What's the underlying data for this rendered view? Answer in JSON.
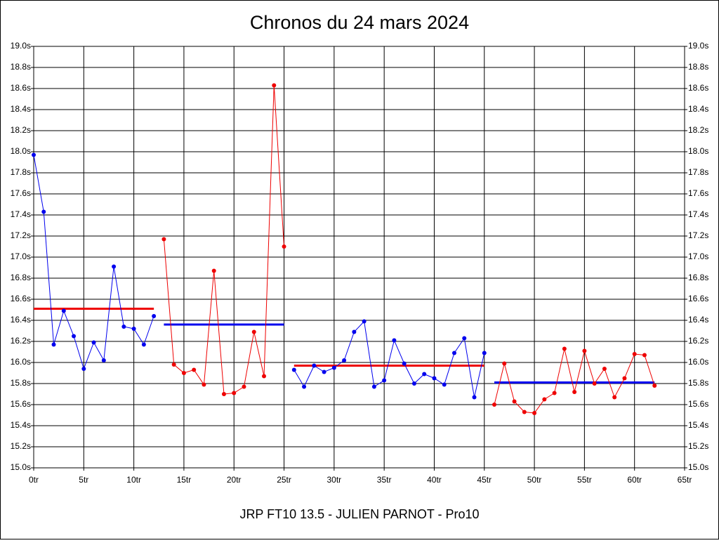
{
  "chart_data": {
    "type": "line",
    "title": "Chronos du 24 mars 2024",
    "footer": "JRP FT10 13.5 - JULIEN PARNOT - Pro10",
    "xlim": [
      0,
      65
    ],
    "ylim": [
      15.0,
      19.0
    ],
    "grid": true,
    "xticks": [
      {
        "value": 0,
        "label": "0tr"
      },
      {
        "value": 5,
        "label": "5tr"
      },
      {
        "value": 10,
        "label": "10tr"
      },
      {
        "value": 15,
        "label": "15tr"
      },
      {
        "value": 20,
        "label": "20tr"
      },
      {
        "value": 25,
        "label": "25tr"
      },
      {
        "value": 30,
        "label": "30tr"
      },
      {
        "value": 35,
        "label": "35tr"
      },
      {
        "value": 40,
        "label": "40tr"
      },
      {
        "value": 45,
        "label": "45tr"
      },
      {
        "value": 50,
        "label": "50tr"
      },
      {
        "value": 55,
        "label": "55tr"
      },
      {
        "value": 60,
        "label": "60tr"
      },
      {
        "value": 65,
        "label": "65tr"
      }
    ],
    "yticks": [
      {
        "value": 15.0,
        "label": "15.0s"
      },
      {
        "value": 15.2,
        "label": "15.2s"
      },
      {
        "value": 15.4,
        "label": "15.4s"
      },
      {
        "value": 15.6,
        "label": "15.6s"
      },
      {
        "value": 15.8,
        "label": "15.8s"
      },
      {
        "value": 16.0,
        "label": "16.0s"
      },
      {
        "value": 16.2,
        "label": "16.2s"
      },
      {
        "value": 16.4,
        "label": "16.4s"
      },
      {
        "value": 16.6,
        "label": "16.6s"
      },
      {
        "value": 16.8,
        "label": "16.8s"
      },
      {
        "value": 17.0,
        "label": "17.0s"
      },
      {
        "value": 17.2,
        "label": "17.2s"
      },
      {
        "value": 17.4,
        "label": "17.4s"
      },
      {
        "value": 17.6,
        "label": "17.6s"
      },
      {
        "value": 17.8,
        "label": "17.8s"
      },
      {
        "value": 18.0,
        "label": "18.0s"
      },
      {
        "value": 18.2,
        "label": "18.2s"
      },
      {
        "value": 18.4,
        "label": "18.4s"
      },
      {
        "value": 18.6,
        "label": "18.6s"
      },
      {
        "value": 18.8,
        "label": "18.8s"
      },
      {
        "value": 19.0,
        "label": "19.0s"
      }
    ],
    "series": [
      {
        "color": "#0000ee",
        "x": [
          0,
          1,
          2,
          3,
          4,
          5,
          6,
          7,
          8,
          9,
          10,
          11,
          12
        ],
        "values": [
          17.97,
          17.43,
          16.17,
          16.49,
          16.25,
          15.94,
          16.19,
          16.02,
          16.91,
          16.34,
          16.32,
          16.17,
          16.44
        ]
      },
      {
        "color": "#ee0000",
        "x": [
          13,
          14,
          15,
          16,
          17,
          18,
          19,
          20,
          21,
          22,
          23,
          24,
          25
        ],
        "values": [
          17.17,
          15.98,
          15.9,
          15.93,
          15.79,
          16.87,
          15.7,
          15.71,
          15.77,
          16.29,
          15.87,
          18.63,
          17.1
        ]
      },
      {
        "color": "#0000ee",
        "x": [
          26,
          27,
          28,
          29,
          30,
          31,
          32,
          33,
          34,
          35,
          36,
          37,
          38,
          39,
          40,
          41,
          42,
          43,
          44,
          45
        ],
        "values": [
          15.93,
          15.77,
          15.97,
          15.91,
          15.95,
          16.02,
          16.29,
          16.39,
          15.77,
          15.83,
          16.21,
          15.99,
          15.8,
          15.89,
          15.85,
          15.79,
          16.09,
          16.23,
          15.67,
          16.09
        ]
      },
      {
        "color": "#ee0000",
        "x": [
          46,
          47,
          48,
          49,
          50,
          51,
          52,
          53,
          54,
          55,
          56,
          57,
          58,
          59,
          60,
          61,
          62
        ],
        "values": [
          15.6,
          15.99,
          15.63,
          15.53,
          15.52,
          15.65,
          15.71,
          16.13,
          15.72,
          16.11,
          15.8,
          15.94,
          15.67,
          15.85,
          16.08,
          16.07,
          15.78
        ]
      }
    ],
    "averages": [
      {
        "color": "#ee0000",
        "x": [
          0,
          12
        ],
        "value": 16.51
      },
      {
        "color": "#0000ee",
        "x": [
          13,
          25
        ],
        "value": 16.36
      },
      {
        "color": "#ee0000",
        "x": [
          26,
          45
        ],
        "value": 15.97
      },
      {
        "color": "#0000ee",
        "x": [
          46,
          62
        ],
        "value": 15.81
      }
    ]
  }
}
